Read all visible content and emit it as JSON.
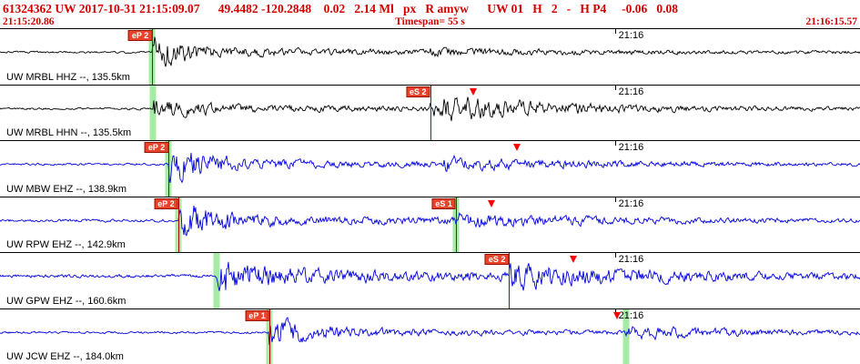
{
  "header": {
    "line1": "61324362 UW 2017-10-31 21:15:09.07      49.4482 -120.2848    0.02   2.14 Ml   px   R amyw      UW 01   H   2   -   H P4     -0.06   0.08",
    "start_time": "21:15:20.86",
    "timespan_label": "Timespan=  55 s",
    "end_time": "21:16:15.57"
  },
  "timeline": {
    "tick_fraction": 0.715,
    "tick_label": "21:16"
  },
  "colors": {
    "header_red": "#d40000",
    "trace_black": "#000000",
    "trace_blue": "#0000dd",
    "pick_band_green": "#8ee68e",
    "marker_red": "#ff0000"
  },
  "traces": [
    {
      "label": "UW MRBL HHZ --, 135.5km",
      "color": "#000000",
      "picks": [
        {
          "label": "eP 2",
          "x": 0.177
        }
      ],
      "bands": [
        0.177
      ],
      "triangles": [],
      "wave": {
        "seed": 101,
        "noise": 1.4,
        "p": 0.177,
        "pAmp": 20,
        "coda": 4.5,
        "s": 0.5,
        "sAmp": 3
      }
    },
    {
      "label": "UW MRBL HHN --, 135.5km",
      "color": "#000000",
      "picks": [
        {
          "label": "eS 2",
          "x": 0.5
        }
      ],
      "bands": [
        0.178
      ],
      "triangles": [
        0.55
      ],
      "wave": {
        "seed": 202,
        "noise": 1.4,
        "p": 0.178,
        "pAmp": 11,
        "coda": 4,
        "s": 0.5,
        "sAmp": 16
      }
    },
    {
      "label": "UW MBW EHZ --, 138.9km",
      "color": "#0000dd",
      "picks": [
        {
          "label": "eP 2",
          "x": 0.196
        }
      ],
      "bands": [
        0.196
      ],
      "triangles": [
        0.601
      ],
      "wave": {
        "seed": 303,
        "noise": 1.5,
        "p": 0.196,
        "pAmp": 22,
        "coda": 4.5,
        "s": 0.512,
        "sAmp": 7
      }
    },
    {
      "label": "UW RPW EHZ --, 142.9km",
      "color": "#0000dd",
      "picks": [
        {
          "label": "eP 2",
          "x": 0.207
        },
        {
          "label": "eS 1",
          "x": 0.53
        }
      ],
      "bands": [
        0.207,
        0.53
      ],
      "triangles": [
        0.571
      ],
      "wave": {
        "seed": 404,
        "noise": 1.8,
        "p": 0.207,
        "pAmp": 24,
        "coda": 5,
        "s": 0.53,
        "sAmp": 7
      }
    },
    {
      "label": "UW GPW EHZ --, 160.6km",
      "color": "#0000dd",
      "picks": [
        {
          "label": "eS 2",
          "x": 0.592
        }
      ],
      "bands": [
        0.252
      ],
      "triangles": [
        0.667
      ],
      "wave": {
        "seed": 505,
        "noise": 2.2,
        "p": 0.252,
        "pAmp": 20,
        "coda": 8,
        "s": 0.592,
        "sAmp": 14
      }
    },
    {
      "label": "UW JCW EHZ --, 184.0km",
      "color": "#0000dd",
      "picks": [
        {
          "label": "eP 1",
          "x": 0.313
        }
      ],
      "bands": [
        0.313,
        0.728
      ],
      "triangles": [
        0.717
      ],
      "wave": {
        "seed": 606,
        "noise": 1.5,
        "p": 0.313,
        "pAmp": 18,
        "coda": 4,
        "s": 0.728,
        "sAmp": 6
      }
    }
  ]
}
